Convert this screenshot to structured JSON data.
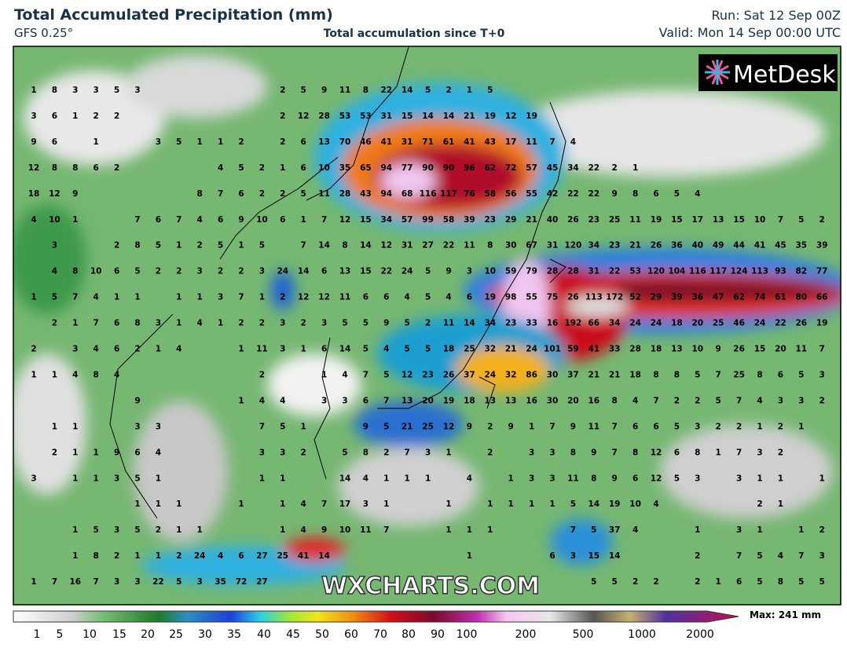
{
  "header": {
    "title": "Total Accumulated Precipitation (mm)",
    "model": "GFS 0.25°",
    "subtitle": "Total accumulation since T+0",
    "run": "Run: Sat 12 Sep 00Z",
    "valid": "Valid: Mon 14 Sep 00:00 UTC"
  },
  "logo": "MetDesk",
  "watermark": "WXCHARTS.COM",
  "grid": {
    "rows": [
      [
        1,
        8,
        3,
        3,
        5,
        3,
        null,
        null,
        null,
        null,
        null,
        null,
        2,
        5,
        9,
        11,
        8,
        22,
        14,
        5,
        2,
        1,
        5,
        null,
        null,
        null,
        null,
        null,
        null,
        null,
        null,
        null,
        null,
        null,
        null,
        null,
        null,
        null,
        null
      ],
      [
        3,
        6,
        1,
        2,
        2,
        null,
        null,
        null,
        null,
        null,
        null,
        null,
        2,
        12,
        28,
        53,
        53,
        31,
        15,
        14,
        14,
        21,
        19,
        12,
        19,
        null,
        null,
        null,
        null,
        null,
        null,
        null,
        null,
        null,
        null,
        null,
        null,
        null,
        null
      ],
      [
        9,
        6,
        null,
        1,
        null,
        null,
        3,
        5,
        1,
        1,
        2,
        null,
        2,
        6,
        13,
        70,
        46,
        41,
        31,
        71,
        61,
        41,
        43,
        17,
        11,
        7,
        4,
        null,
        null,
        null,
        null,
        null,
        null,
        null,
        null,
        null,
        null,
        null,
        null
      ],
      [
        12,
        8,
        8,
        6,
        2,
        null,
        null,
        null,
        null,
        4,
        5,
        2,
        1,
        6,
        10,
        35,
        65,
        94,
        77,
        90,
        90,
        96,
        62,
        72,
        57,
        45,
        34,
        22,
        2,
        1,
        null,
        null,
        null,
        null,
        null,
        null,
        null,
        null,
        null
      ],
      [
        18,
        12,
        9,
        null,
        null,
        null,
        null,
        null,
        8,
        7,
        6,
        2,
        2,
        5,
        11,
        28,
        43,
        94,
        68,
        116,
        117,
        76,
        58,
        56,
        55,
        42,
        22,
        22,
        9,
        8,
        6,
        5,
        4,
        null,
        null,
        null,
        null,
        null,
        null
      ],
      [
        4,
        10,
        1,
        null,
        null,
        7,
        6,
        7,
        4,
        6,
        9,
        10,
        6,
        1,
        7,
        12,
        15,
        34,
        57,
        99,
        58,
        39,
        23,
        29,
        21,
        40,
        26,
        23,
        25,
        11,
        19,
        15,
        17,
        13,
        15,
        10,
        7,
        5,
        2
      ],
      [
        null,
        3,
        null,
        null,
        2,
        8,
        5,
        1,
        2,
        5,
        1,
        5,
        null,
        7,
        14,
        8,
        14,
        12,
        31,
        27,
        22,
        11,
        8,
        30,
        67,
        31,
        120,
        34,
        23,
        21,
        26,
        36,
        40,
        49,
        44,
        41,
        45,
        35,
        39
      ],
      [
        null,
        4,
        8,
        10,
        6,
        5,
        2,
        2,
        3,
        2,
        2,
        3,
        24,
        14,
        6,
        13,
        15,
        22,
        24,
        5,
        9,
        3,
        10,
        59,
        79,
        28,
        28,
        31,
        22,
        53,
        120,
        104,
        116,
        117,
        124,
        113,
        93,
        82,
        77
      ],
      [
        1,
        5,
        7,
        4,
        1,
        1,
        null,
        1,
        1,
        3,
        7,
        1,
        2,
        12,
        12,
        11,
        6,
        6,
        4,
        5,
        4,
        6,
        19,
        98,
        55,
        75,
        26,
        113,
        172,
        52,
        29,
        39,
        36,
        47,
        62,
        74,
        61,
        80,
        66
      ],
      [
        null,
        2,
        1,
        7,
        6,
        8,
        3,
        1,
        4,
        1,
        2,
        2,
        3,
        2,
        3,
        5,
        5,
        9,
        5,
        2,
        11,
        14,
        34,
        23,
        33,
        16,
        192,
        66,
        34,
        24,
        24,
        18,
        20,
        25,
        46,
        24,
        22,
        26,
        19
      ],
      [
        2,
        null,
        3,
        4,
        6,
        2,
        1,
        4,
        null,
        null,
        1,
        11,
        3,
        1,
        6,
        14,
        5,
        4,
        5,
        5,
        18,
        25,
        32,
        21,
        24,
        101,
        59,
        41,
        33,
        28,
        18,
        13,
        10,
        9,
        26,
        15,
        20,
        11,
        7
      ],
      [
        1,
        1,
        4,
        8,
        4,
        null,
        null,
        null,
        null,
        null,
        null,
        2,
        null,
        null,
        1,
        4,
        7,
        5,
        12,
        23,
        26,
        37,
        24,
        32,
        86,
        30,
        37,
        21,
        21,
        18,
        8,
        8,
        5,
        7,
        25,
        8,
        6,
        5,
        3
      ],
      [
        null,
        null,
        null,
        null,
        null,
        9,
        null,
        null,
        null,
        null,
        1,
        4,
        4,
        null,
        3,
        3,
        6,
        7,
        13,
        20,
        19,
        18,
        13,
        13,
        16,
        30,
        20,
        16,
        8,
        4,
        7,
        2,
        2,
        5,
        7,
        4,
        3,
        3,
        2
      ],
      [
        null,
        1,
        1,
        null,
        null,
        3,
        3,
        null,
        null,
        null,
        null,
        7,
        5,
        1,
        null,
        null,
        9,
        5,
        21,
        25,
        12,
        9,
        2,
        9,
        1,
        7,
        9,
        11,
        7,
        6,
        6,
        5,
        3,
        2,
        2,
        1,
        2,
        1,
        null
      ],
      [
        null,
        2,
        1,
        1,
        9,
        6,
        4,
        null,
        null,
        null,
        null,
        3,
        3,
        2,
        null,
        5,
        8,
        2,
        7,
        3,
        1,
        null,
        2,
        null,
        3,
        3,
        8,
        9,
        7,
        8,
        12,
        6,
        8,
        1,
        7,
        3,
        2,
        null,
        null
      ],
      [
        3,
        null,
        1,
        1,
        3,
        5,
        1,
        null,
        null,
        null,
        null,
        1,
        1,
        null,
        null,
        14,
        4,
        1,
        1,
        1,
        null,
        4,
        null,
        1,
        3,
        3,
        11,
        8,
        9,
        6,
        12,
        5,
        3,
        null,
        3,
        1,
        1,
        null,
        1
      ],
      [
        null,
        null,
        null,
        null,
        null,
        1,
        1,
        1,
        null,
        null,
        1,
        null,
        1,
        4,
        7,
        17,
        3,
        1,
        null,
        null,
        1,
        null,
        1,
        1,
        1,
        1,
        5,
        14,
        19,
        10,
        4,
        null,
        null,
        null,
        null,
        2,
        1,
        null,
        null
      ],
      [
        null,
        null,
        1,
        5,
        3,
        5,
        2,
        1,
        1,
        null,
        null,
        null,
        1,
        4,
        9,
        10,
        11,
        7,
        null,
        null,
        1,
        1,
        1,
        null,
        null,
        null,
        7,
        5,
        37,
        4,
        null,
        null,
        1,
        null,
        3,
        1,
        null,
        1,
        2
      ],
      [
        null,
        null,
        1,
        8,
        2,
        1,
        1,
        2,
        24,
        4,
        6,
        27,
        25,
        41,
        14,
        null,
        null,
        null,
        null,
        null,
        null,
        1,
        null,
        null,
        null,
        6,
        3,
        15,
        14,
        null,
        null,
        null,
        2,
        null,
        7,
        5,
        4,
        7,
        3
      ],
      [
        1,
        7,
        16,
        7,
        3,
        3,
        22,
        5,
        3,
        35,
        72,
        27,
        null,
        null,
        null,
        null,
        null,
        null,
        null,
        null,
        null,
        null,
        null,
        null,
        null,
        null,
        null,
        5,
        5,
        2,
        2,
        null,
        2,
        1,
        6,
        5,
        8,
        5,
        5
      ]
    ]
  },
  "colorbar": {
    "labels": [
      1,
      5,
      10,
      15,
      20,
      25,
      30,
      35,
      40,
      45,
      50,
      60,
      70,
      80,
      90,
      100,
      200,
      500,
      1000,
      2000
    ],
    "max": "Max: 241 mm"
  }
}
